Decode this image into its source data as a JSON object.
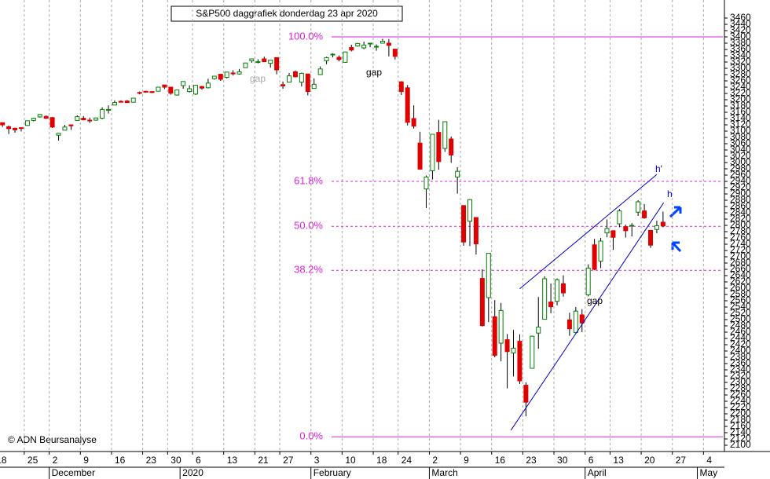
{
  "chart_data": {
    "type": "candlestick",
    "title": "S&P500 daggrafiek donderdag 23 apr 2020",
    "copyright": "© ADN Beursanalyse",
    "up_color": "#008000",
    "down_color": "#e00000",
    "level_color": "#e020e0",
    "x": [
      1,
      2,
      3,
      4,
      5,
      6,
      7,
      8,
      9,
      10,
      11,
      12,
      13,
      14,
      15,
      16,
      17,
      18,
      19,
      20,
      21,
      22,
      23,
      24,
      25,
      26,
      27,
      28,
      29,
      30,
      31,
      32,
      33,
      34,
      35,
      36,
      37,
      38,
      39,
      40,
      41,
      42,
      43,
      44,
      45,
      46,
      47,
      48,
      49,
      50,
      51,
      52,
      53,
      54,
      55,
      56,
      57,
      58,
      59,
      60,
      61,
      62,
      63,
      64,
      65,
      66,
      67,
      68,
      69,
      70,
      71,
      72,
      73,
      74,
      75,
      76,
      77,
      78,
      79,
      80,
      81,
      82,
      83,
      84,
      85,
      86,
      87,
      88,
      89,
      90,
      91,
      92,
      93,
      94,
      95,
      96,
      97,
      98,
      99,
      100,
      101,
      102,
      103,
      104,
      105,
      106,
      107
    ],
    "open": [
      3127,
      3114,
      3109,
      3111,
      3118,
      3134,
      3145,
      3147,
      3143,
      3087,
      3103,
      3120,
      3134,
      3141,
      3135,
      3135,
      3141,
      3167,
      3183,
      3195,
      3196,
      3192,
      3223,
      3227,
      3226,
      3227,
      3247,
      3240,
      3215,
      3245,
      3226,
      3218,
      3242,
      3238,
      3267,
      3281,
      3271,
      3285,
      3282,
      3302,
      3324,
      3321,
      3330,
      3316,
      3334,
      3248,
      3256,
      3289,
      3256,
      3282,
      3236,
      3280,
      3324,
      3345,
      3335,
      3319,
      3366,
      3371,
      3365,
      3379,
      3370,
      3380,
      3380,
      3361,
      3257,
      3238,
      3140,
      3062,
      2916,
      2974,
      3096,
      3045,
      3075,
      2954,
      2863,
      2813,
      2825,
      2631,
      2570,
      2509,
      2425,
      2436,
      2394,
      2431,
      2291,
      2345,
      2457,
      2501,
      2556,
      2558,
      2614,
      2499,
      2459,
      2515,
      2579,
      2738,
      2686,
      2776,
      2783,
      2805,
      2796,
      2799,
      2842,
      2846,
      2784,
      2787,
      2810
    ],
    "high": [
      3127,
      3118,
      3111,
      3112,
      3133,
      3142,
      3154,
      3150,
      3145,
      3094,
      3120,
      3120,
      3150,
      3148,
      3143,
      3143,
      3176,
      3182,
      3198,
      3198,
      3199,
      3206,
      3226,
      3227,
      3226,
      3240,
      3247,
      3240,
      3231,
      3258,
      3246,
      3247,
      3244,
      3267,
      3275,
      3282,
      3288,
      3294,
      3298,
      3317,
      3330,
      3329,
      3337,
      3326,
      3334,
      3258,
      3285,
      3293,
      3286,
      3282,
      3268,
      3306,
      3337,
      3348,
      3341,
      3353,
      3375,
      3381,
      3385,
      3381,
      3376,
      3394,
      3393,
      3361,
      3259,
      3247,
      3182,
      3098,
      2959,
      3090,
      3136,
      3130,
      3083,
      2985,
      2863,
      2883,
      2825,
      2660,
      2711,
      2562,
      2553,
      2454,
      2467,
      2453,
      2300,
      2449,
      2572,
      2638,
      2615,
      2631,
      2641,
      2522,
      2540,
      2533,
      2676,
      2757,
      2760,
      2819,
      2783,
      2852,
      2802,
      2807,
      2880,
      2868,
      2785,
      2815,
      2844
    ],
    "low": [
      3113,
      3091,
      3095,
      3099,
      3117,
      3131,
      3143,
      3139,
      3110,
      3070,
      3103,
      3104,
      3134,
      3135,
      3126,
      3133,
      3138,
      3156,
      3183,
      3192,
      3191,
      3192,
      3217,
      3222,
      3221,
      3227,
      3234,
      3216,
      3213,
      3235,
      3223,
      3215,
      3232,
      3236,
      3264,
      3260,
      3268,
      3277,
      3280,
      3302,
      3318,
      3316,
      3320,
      3302,
      3281,
      3235,
      3255,
      3271,
      3242,
      3214,
      3236,
      3280,
      3313,
      3335,
      3322,
      3318,
      3354,
      3369,
      3361,
      3367,
      3356,
      3379,
      3338,
      3328,
      3215,
      3118,
      3108,
      2977,
      2855,
      2946,
      2977,
      3034,
      2999,
      2901,
      2735,
      2734,
      2707,
      2478,
      2492,
      2380,
      2367,
      2281,
      2319,
      2295,
      2192,
      2345,
      2407,
      2501,
      2520,
      2545,
      2573,
      2448,
      2456,
      2460,
      2574,
      2657,
      2664,
      2762,
      2722,
      2794,
      2761,
      2765,
      2830,
      2821,
      2728,
      2775,
      2794
    ],
    "close": [
      3120,
      3108,
      3104,
      3110,
      3133,
      3141,
      3153,
      3141,
      3113,
      3093,
      3113,
      3117,
      3146,
      3136,
      3133,
      3142,
      3169,
      3169,
      3191,
      3192,
      3191,
      3205,
      3221,
      3224,
      3223,
      3240,
      3240,
      3221,
      3231,
      3258,
      3235,
      3246,
      3237,
      3253,
      3275,
      3265,
      3288,
      3283,
      3289,
      3317,
      3330,
      3321,
      3321,
      3326,
      3295,
      3244,
      3276,
      3273,
      3284,
      3226,
      3249,
      3298,
      3334,
      3345,
      3328,
      3352,
      3358,
      3379,
      3374,
      3380,
      3370,
      3386,
      3373,
      3338,
      3226,
      3128,
      3116,
      2979,
      2954,
      3090,
      3003,
      3130,
      3024,
      2972,
      2747,
      2882,
      2741,
      2481,
      2711,
      2386,
      2529,
      2398,
      2409,
      2305,
      2237,
      2447,
      2476,
      2630,
      2541,
      2627,
      2585,
      2471,
      2527,
      2489,
      2664,
      2660,
      2750,
      2790,
      2762,
      2846,
      2783,
      2800,
      2875,
      2824,
      2737,
      2799,
      2798
    ],
    "xlim": [
      0.6,
      116.6
    ],
    "ylim": [
      2080,
      3480
    ],
    "xgrid": true,
    "xticks": [
      {
        "value": 0,
        "label": "18"
      },
      {
        "value": 5,
        "label": "25"
      },
      {
        "value": 9,
        "label": "2"
      },
      {
        "value": 14,
        "label": "9"
      },
      {
        "value": 19,
        "label": "16"
      },
      {
        "value": 24,
        "label": "23"
      },
      {
        "value": 28,
        "label": "30"
      },
      {
        "value": 32,
        "label": "6"
      },
      {
        "value": 37,
        "label": "13"
      },
      {
        "value": 42,
        "label": "21"
      },
      {
        "value": 46,
        "label": "27"
      },
      {
        "value": 51,
        "label": "3"
      },
      {
        "value": 56,
        "label": "10"
      },
      {
        "value": 61,
        "label": "18"
      },
      {
        "value": 65,
        "label": "24"
      },
      {
        "value": 70,
        "label": "2"
      },
      {
        "value": 75,
        "label": "9"
      },
      {
        "value": 80,
        "label": "16"
      },
      {
        "value": 85,
        "label": "23"
      },
      {
        "value": 90,
        "label": "30"
      },
      {
        "value": 95,
        "label": "6"
      },
      {
        "value": 99,
        "label": "13"
      },
      {
        "value": 104,
        "label": "20"
      },
      {
        "value": 109,
        "label": "27"
      },
      {
        "value": 114,
        "label": "4"
      }
    ],
    "month_labels": [
      {
        "value": 9,
        "label": "December"
      },
      {
        "value": 30,
        "label": "2020"
      },
      {
        "value": 51,
        "label": "February"
      },
      {
        "value": 70,
        "label": "March"
      },
      {
        "value": 95,
        "label": "April"
      },
      {
        "value": 113,
        "label": "May"
      }
    ],
    "yticks": [
      2100,
      2120,
      2140,
      2160,
      2180,
      2200,
      2220,
      2240,
      2260,
      2280,
      2300,
      2320,
      2340,
      2360,
      2380,
      2400,
      2420,
      2440,
      2460,
      2480,
      2500,
      2520,
      2540,
      2560,
      2580,
      2600,
      2620,
      2640,
      2660,
      2680,
      2700,
      2720,
      2740,
      2760,
      2780,
      2800,
      2820,
      2840,
      2860,
      2880,
      2900,
      2920,
      2940,
      2960,
      2980,
      3000,
      3020,
      3040,
      3060,
      3080,
      3100,
      3120,
      3140,
      3160,
      3180,
      3200,
      3220,
      3240,
      3260,
      3280,
      3300,
      3320,
      3340,
      3360,
      3380,
      3400,
      3420,
      3440,
      3460
    ],
    "levels": [
      {
        "label": "100.0%",
        "value": 3400,
        "solid": true
      },
      {
        "label": "61.8%",
        "value": 2940,
        "solid": false
      },
      {
        "label": "50.0%",
        "value": 2797,
        "solid": false
      },
      {
        "label": "38.2%",
        "value": 2657,
        "solid": false
      },
      {
        "label": "0.0%",
        "value": 2127,
        "solid": true
      }
    ],
    "trendlines": [
      {
        "color": "#0000cc",
        "x": [
          84,
          106
        ],
        "values": [
          2598,
          2962
        ]
      },
      {
        "color": "#0000cc",
        "x": [
          82.6,
          107.1
        ],
        "values": [
          2148,
          2872
        ]
      }
    ],
    "annotations": [
      {
        "text": "gap",
        "color": "#aaaaaa"
      },
      {
        "text": "gap",
        "color": "#000000"
      },
      {
        "text": "gap",
        "color": "#000000"
      },
      {
        "text": "h'",
        "color": "#0000cc"
      },
      {
        "text": "h",
        "color": "#0000cc"
      }
    ]
  }
}
